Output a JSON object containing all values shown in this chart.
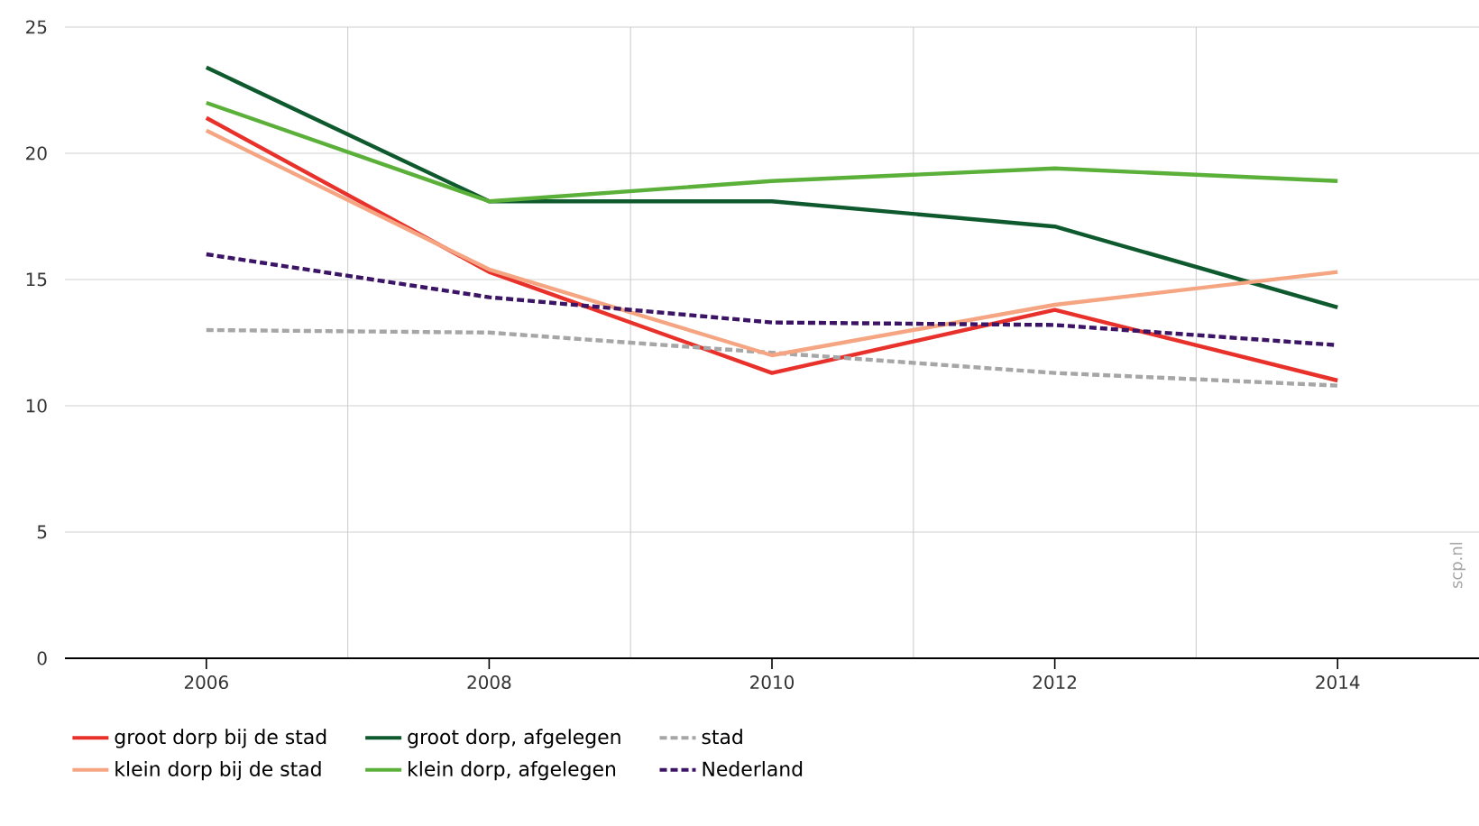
{
  "chart_data": {
    "type": "line",
    "x": [
      2006,
      2008,
      2010,
      2012,
      2014
    ],
    "xlim": [
      2005,
      2015
    ],
    "xticks": [
      2006,
      {
        "value": 2007,
        "label": null
      },
      2008,
      {
        "value": 2009,
        "label": null
      },
      2010,
      {
        "value": 2011,
        "label": null
      },
      2012,
      {
        "value": 2013,
        "label": null
      },
      2014
    ],
    "ylim": [
      0,
      25
    ],
    "yticks": [
      0,
      5,
      10,
      15,
      20,
      25
    ],
    "grid": true,
    "legend": "bottom",
    "series": [
      {
        "name": "groot dorp bij de stad",
        "color": "#e8312a",
        "line_style": "solid",
        "values": [
          21.4,
          15.3,
          11.3,
          13.8,
          11.0
        ]
      },
      {
        "name": "groot dorp, afgelegen",
        "color": "#0e5a2e",
        "line_style": "solid",
        "values": [
          23.4,
          18.1,
          18.1,
          17.1,
          13.9
        ]
      },
      {
        "name": "stad",
        "color": "#a6a6a6",
        "line_style": "dashed",
        "values": [
          13.0,
          12.9,
          12.1,
          11.3,
          10.8
        ]
      },
      {
        "name": "klein dorp bij de stad",
        "color": "#f5a582",
        "line_style": "solid",
        "values": [
          20.9,
          15.4,
          12.0,
          14.0,
          15.3
        ]
      },
      {
        "name": "klein dorp, afgelegen",
        "color": "#5bb03a",
        "line_style": "solid",
        "values": [
          22.0,
          18.1,
          18.9,
          19.4,
          18.9
        ]
      },
      {
        "name": "Nederland",
        "color": "#3b1466",
        "line_style": "dashed",
        "values": [
          16.0,
          14.3,
          13.3,
          13.2,
          12.4
        ]
      }
    ],
    "annotations": [
      "scp.nl"
    ]
  }
}
